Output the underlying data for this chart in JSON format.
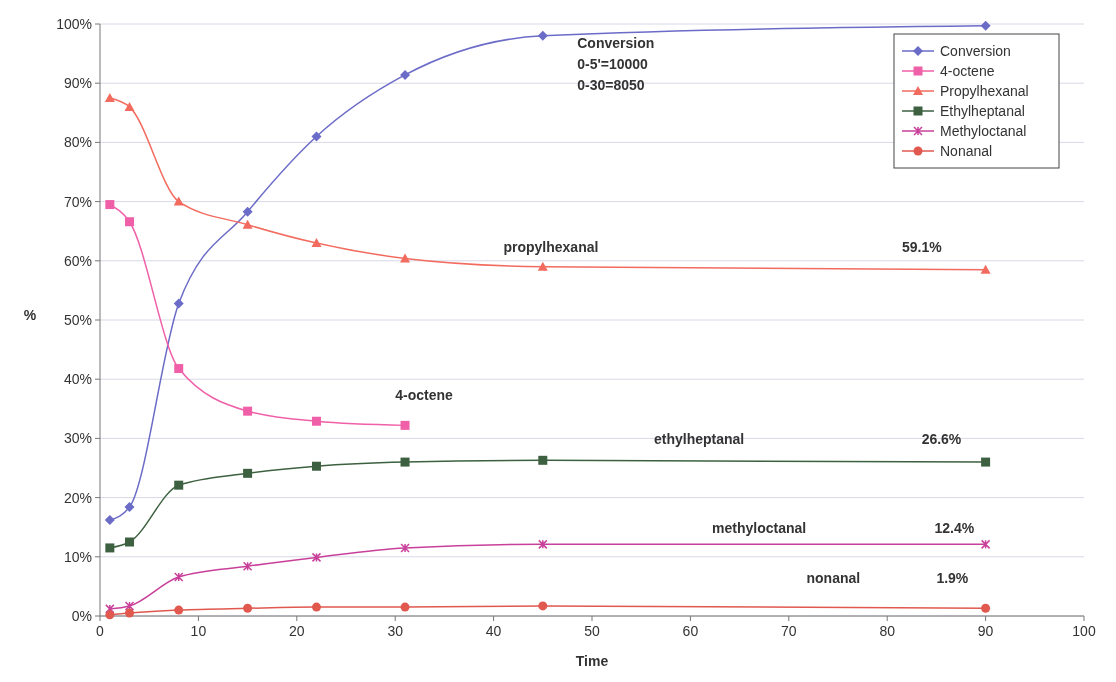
{
  "chart_data": {
    "type": "line",
    "xlabel": "Time",
    "ylabel": "%",
    "xlim": [
      0,
      100
    ],
    "xticks": [
      0,
      10,
      20,
      30,
      40,
      50,
      60,
      70,
      80,
      90,
      100
    ],
    "ylim": [
      0,
      100
    ],
    "yticks": [
      {
        "value": 0,
        "label": "0%"
      },
      {
        "value": 10,
        "label": "10%"
      },
      {
        "value": 20,
        "label": "20%"
      },
      {
        "value": 30,
        "label": "30%"
      },
      {
        "value": 40,
        "label": "40%"
      },
      {
        "value": 50,
        "label": "50%"
      },
      {
        "value": 60,
        "label": "60%"
      },
      {
        "value": 70,
        "label": "70%"
      },
      {
        "value": 80,
        "label": "80%"
      },
      {
        "value": 90,
        "label": "90%"
      },
      {
        "value": 100,
        "label": "100%"
      }
    ],
    "grid": "y",
    "legend": "top right",
    "series": [
      {
        "name": "Conversion",
        "color": "#6b6bc8",
        "marker": "diamond",
        "x": [
          1,
          3,
          8,
          15,
          22,
          31,
          45,
          90
        ],
        "values": [
          16.2,
          18.4,
          52.8,
          68.3,
          81,
          91.4,
          98,
          99.7
        ]
      },
      {
        "name": "4-octene",
        "color": "#f060a8",
        "marker": "square",
        "x": [
          1,
          3,
          8,
          15,
          22,
          31
        ],
        "values": [
          69.5,
          66.6,
          41.8,
          34.6,
          32.9,
          32.2
        ]
      },
      {
        "name": "Propylhexanal",
        "color": "#f26b5e",
        "marker": "triangle",
        "x": [
          1,
          3,
          8,
          15,
          22,
          31,
          45,
          90
        ],
        "values": [
          87.5,
          86,
          70,
          66.1,
          63,
          60.4,
          59,
          58.5
        ]
      },
      {
        "name": "Ethylheptanal",
        "color": "#3d6140",
        "marker": "square",
        "x": [
          1,
          3,
          8,
          15,
          22,
          31,
          45,
          90
        ],
        "values": [
          11.5,
          12.5,
          22.1,
          24.1,
          25.3,
          26,
          26.3,
          26
        ]
      },
      {
        "name": "Methyloctanal",
        "color": "#c8409a",
        "marker": "cross",
        "x": [
          1,
          3,
          8,
          15,
          22,
          31,
          45,
          90
        ],
        "values": [
          1.2,
          1.7,
          6.6,
          8.4,
          9.9,
          11.5,
          12.1,
          12.1
        ]
      },
      {
        "name": "Nonanal",
        "color": "#e0584e",
        "marker": "circle",
        "x": [
          1,
          3,
          8,
          15,
          22,
          31,
          45,
          90
        ],
        "values": [
          0.2,
          0.5,
          1,
          1.3,
          1.5,
          1.5,
          1.7,
          1.3
        ]
      }
    ],
    "annotations": [
      "Conversion\n0-5'=10000\n0-30=8050",
      "propylhexanal",
      "59.1%",
      "4-octene",
      "ethylheptanal",
      "26.6%",
      "methyloctanal",
      "12.4%",
      "nonanal",
      "1.9%"
    ]
  }
}
